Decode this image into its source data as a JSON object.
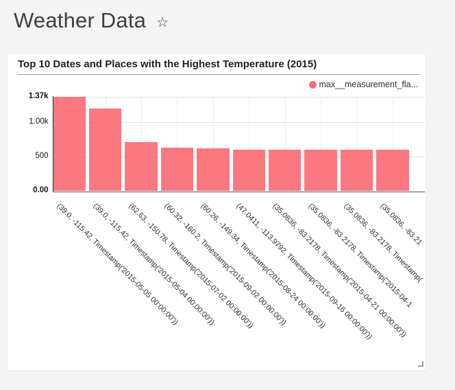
{
  "header": {
    "title": "Weather Data",
    "star_icon": "☆"
  },
  "chart_card": {
    "title": "Top 10 Dates and Places with the Highest Temperature (2015)",
    "legend_label": "max__measurement_fla..."
  },
  "chart_data": {
    "type": "bar",
    "title": "Top 10 Dates and Places with the Highest Temperature (2015)",
    "legend": [
      "max__measurement_fla..."
    ],
    "legend_position": "top-right",
    "bar_color": "#fc646e",
    "legend_dot_color": "#fc6a74",
    "grid": true,
    "x_label_rotation_deg": 45,
    "ylim": [
      0,
      1370
    ],
    "y_ticks": [
      {
        "label": "0.00",
        "value": 0,
        "bold": true
      },
      {
        "label": "500",
        "value": 500,
        "bold": false
      },
      {
        "label": "1.00k",
        "value": 1000,
        "bold": false
      },
      {
        "label": "1.37k",
        "value": 1370,
        "bold": true
      }
    ],
    "gridline_values": [
      500,
      1000,
      1370
    ],
    "categories": [
      "(39.0, -115.42, Timestamp('2015-05-05 00:00:00'))",
      "(39.0, -115.42, Timestamp('2015-05-04 00:00:00'))",
      "(62.63, -150.78, Timestamp('2015-07-02 00:00:00'))",
      "(60.32, -160.2, Timestamp('2015-09-02 00:00:00'))",
      "(60.26, -149.34, Timestamp('2015-08-24 00:00:00'))",
      "(47.0411, -113.9792, Timestamp('2015-09-16 00:00:00'))",
      "(35.0836, -83.2178, Timestamp('2015-04-21 00:00:00'))",
      "(35.0836, -83.2178, Timestamp('2015-04-1",
      "(35.0836, -83.2178, Timestamp(",
      "(35.0836, -83.21"
    ],
    "values": [
      1370,
      1200,
      713,
      627,
      623,
      598,
      597,
      597,
      597,
      597
    ]
  }
}
